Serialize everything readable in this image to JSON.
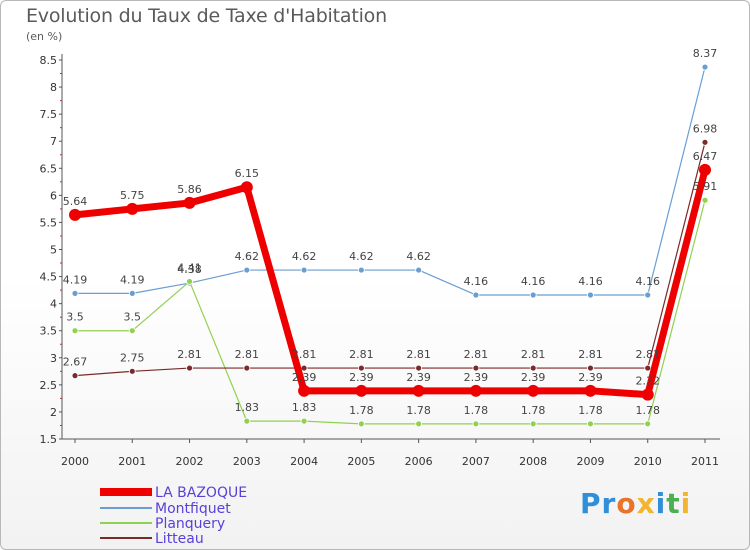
{
  "title": "Evolution du Taux de Taxe d'Habitation",
  "subtitle": "(en %)",
  "logo": {
    "text": "Proxiti",
    "colors": [
      "#2f8fd8",
      "#2f8fd8",
      "#e8732a",
      "#f2b531",
      "#2f8fd8",
      "#4caf50",
      "#f2b531"
    ]
  },
  "chart_data": {
    "type": "line",
    "title": "Evolution du Taux de Taxe d'Habitation",
    "subtitle": "(en %)",
    "xlabel": "",
    "ylabel": "",
    "x": [
      "2000",
      "2001",
      "2002",
      "2003",
      "2004",
      "2005",
      "2006",
      "2007",
      "2008",
      "2009",
      "2010",
      "2011"
    ],
    "ylim": [
      1.5,
      8.5
    ],
    "yticks": [
      "1.5",
      "2",
      "2.5",
      "3",
      "3.5",
      "4",
      "4.5",
      "5",
      "5.5",
      "6",
      "6.5",
      "7",
      "7.5",
      "8",
      "8.5"
    ],
    "grid": false,
    "legend_position": "bottom-left",
    "series": [
      {
        "name": "LA BAZOQUE",
        "color": "#ee0000",
        "values": [
          5.64,
          5.75,
          5.86,
          6.15,
          2.39,
          2.39,
          2.39,
          2.39,
          2.39,
          2.39,
          2.32,
          6.47
        ],
        "labels": [
          "5.64",
          "5.75",
          "5.86",
          "6.15",
          "2.39",
          "2.39",
          "2.39",
          "2.39",
          "2.39",
          "2.39",
          "2.32",
          "6.47"
        ]
      },
      {
        "name": "Montfiquet",
        "color": "#6a9ed1",
        "values": [
          4.19,
          4.19,
          4.38,
          4.62,
          4.62,
          4.62,
          4.62,
          4.16,
          4.16,
          4.16,
          4.16,
          8.37
        ],
        "labels": [
          "4.19",
          "4.19",
          "4.38",
          "4.62",
          "4.62",
          "4.62",
          "4.62",
          "4.16",
          "4.16",
          "4.16",
          "4.16",
          "8.37"
        ]
      },
      {
        "name": "Planquery",
        "color": "#92d050",
        "values": [
          3.5,
          3.5,
          4.41,
          1.83,
          1.83,
          1.78,
          1.78,
          1.78,
          1.78,
          1.78,
          1.78,
          5.91
        ],
        "labels": [
          "3.5",
          "3.5",
          "4.41",
          "1.83",
          "1.83",
          "1.78",
          "1.78",
          "1.78",
          "1.78",
          "1.78",
          "1.78",
          "5.91"
        ]
      },
      {
        "name": "Litteau",
        "color": "#7a2a2a",
        "values": [
          2.67,
          2.75,
          2.81,
          2.81,
          2.81,
          2.81,
          2.81,
          2.81,
          2.81,
          2.81,
          2.81,
          6.98
        ],
        "labels": [
          "2.67",
          "2.75",
          "2.81",
          "2.81",
          "2.81",
          "2.81",
          "2.81",
          "2.81",
          "2.81",
          "2.81",
          "2.81",
          "6.98"
        ]
      }
    ]
  }
}
